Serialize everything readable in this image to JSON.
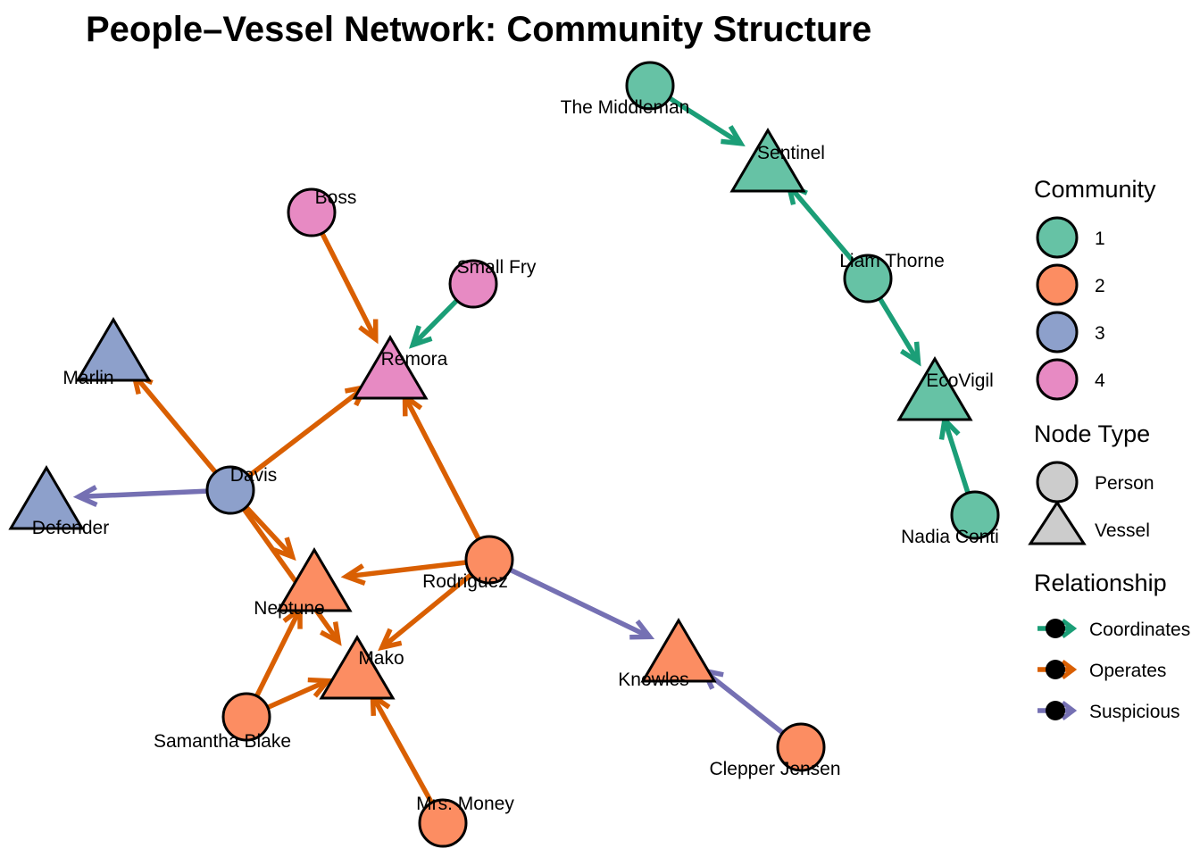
{
  "title": "People–Vessel Network: Community Structure",
  "colors": {
    "community": {
      "1": "#66c2a5",
      "2": "#fc8d62",
      "3": "#8da0cb",
      "4": "#e78ac3"
    },
    "relationship": {
      "Coordinates": "#1b9e77",
      "Operates": "#d95f02",
      "Suspicious": "#7570b3"
    },
    "node_type_neutral": "#cccccc"
  },
  "nodes": [
    {
      "id": "The Middleman",
      "label": "The Middleman",
      "type": "Person",
      "community": "1"
    },
    {
      "id": "Sentinel",
      "label": "Sentinel",
      "type": "Vessel",
      "community": "1"
    },
    {
      "id": "Liam Thorne",
      "label": "Liam Thorne",
      "type": "Person",
      "community": "1"
    },
    {
      "id": "EcoVigil",
      "label": "EcoVigil",
      "type": "Vessel",
      "community": "1"
    },
    {
      "id": "Nadia Conti",
      "label": "Nadia Conti",
      "type": "Person",
      "community": "1"
    },
    {
      "id": "Boss",
      "label": "Boss",
      "type": "Person",
      "community": "4"
    },
    {
      "id": "Small Fry",
      "label": "Small Fry",
      "type": "Person",
      "community": "4"
    },
    {
      "id": "Remora",
      "label": "Remora",
      "type": "Vessel",
      "community": "4"
    },
    {
      "id": "Marlin",
      "label": "Marlin",
      "type": "Vessel",
      "community": "3"
    },
    {
      "id": "Davis",
      "label": "Davis",
      "type": "Person",
      "community": "3"
    },
    {
      "id": "Defender",
      "label": "Defender",
      "type": "Vessel",
      "community": "3"
    },
    {
      "id": "Rodriguez",
      "label": "Rodriguez",
      "type": "Person",
      "community": "2"
    },
    {
      "id": "Neptune",
      "label": "Neptune",
      "type": "Vessel",
      "community": "2"
    },
    {
      "id": "Mako",
      "label": "Mako",
      "type": "Vessel",
      "community": "2"
    },
    {
      "id": "Knowles",
      "label": "Knowles",
      "type": "Vessel",
      "community": "2"
    },
    {
      "id": "Samantha Blake",
      "label": "Samantha Blake",
      "type": "Person",
      "community": "2"
    },
    {
      "id": "Mrs. Money",
      "label": "Mrs. Money",
      "type": "Person",
      "community": "2"
    },
    {
      "id": "Clepper Jensen",
      "label": "Clepper Jensen",
      "type": "Person",
      "community": "2"
    }
  ],
  "edges": [
    {
      "from": "The Middleman",
      "to": "Sentinel",
      "relationship": "Coordinates"
    },
    {
      "from": "Liam Thorne",
      "to": "Sentinel",
      "relationship": "Coordinates"
    },
    {
      "from": "Liam Thorne",
      "to": "EcoVigil",
      "relationship": "Coordinates"
    },
    {
      "from": "Nadia Conti",
      "to": "EcoVigil",
      "relationship": "Coordinates"
    },
    {
      "from": "Small Fry",
      "to": "Remora",
      "relationship": "Coordinates"
    },
    {
      "from": "Boss",
      "to": "Remora",
      "relationship": "Operates"
    },
    {
      "from": "Davis",
      "to": "Remora",
      "relationship": "Operates"
    },
    {
      "from": "Davis",
      "to": "Marlin",
      "relationship": "Operates"
    },
    {
      "from": "Davis",
      "to": "Neptune",
      "relationship": "Operates"
    },
    {
      "from": "Davis",
      "to": "Mako",
      "relationship": "Operates"
    },
    {
      "from": "Davis",
      "to": "Defender",
      "relationship": "Suspicious"
    },
    {
      "from": "Rodriguez",
      "to": "Remora",
      "relationship": "Operates"
    },
    {
      "from": "Rodriguez",
      "to": "Neptune",
      "relationship": "Operates"
    },
    {
      "from": "Rodriguez",
      "to": "Mako",
      "relationship": "Operates"
    },
    {
      "from": "Rodriguez",
      "to": "Knowles",
      "relationship": "Suspicious"
    },
    {
      "from": "Samantha Blake",
      "to": "Neptune",
      "relationship": "Operates"
    },
    {
      "from": "Samantha Blake",
      "to": "Mako",
      "relationship": "Operates"
    },
    {
      "from": "Mrs. Money",
      "to": "Mako",
      "relationship": "Operates"
    },
    {
      "from": "Clepper Jensen",
      "to": "Knowles",
      "relationship": "Suspicious"
    }
  ],
  "legend": {
    "community_title": "Community",
    "community_items": [
      "1",
      "2",
      "3",
      "4"
    ],
    "node_type_title": "Node Type",
    "node_type_items": [
      "Person",
      "Vessel"
    ],
    "relationship_title": "Relationship",
    "relationship_items": [
      "Coordinates",
      "Operates",
      "Suspicious"
    ]
  }
}
